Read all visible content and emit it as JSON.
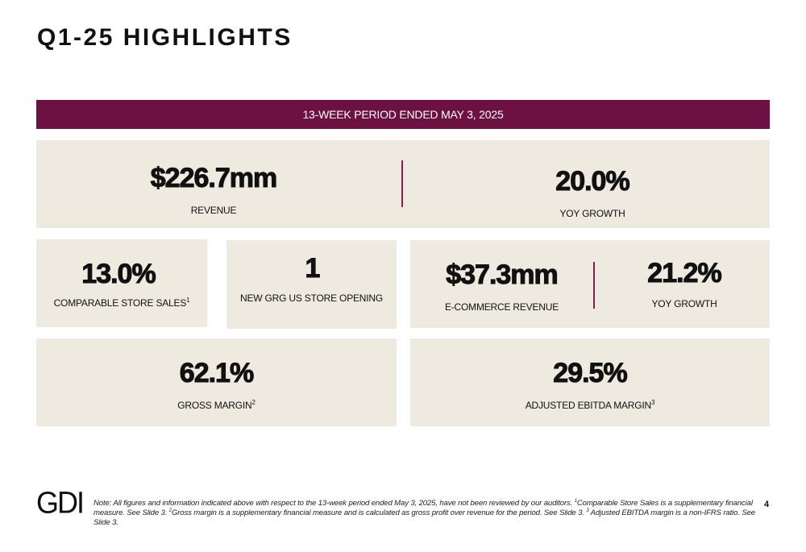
{
  "title": "Q1-25 HIGHLIGHTS",
  "banner": "13-WEEK PERIOD ENDED MAY 3, 2025",
  "revenue": {
    "value": "$226.7mm",
    "label": "REVENUE"
  },
  "revenue_growth": {
    "value": "20.0%",
    "label": "YOY GROWTH"
  },
  "comparable_store_sales": {
    "value": "13.0%",
    "label": "COMPARABLE STORE SALES",
    "footnote": "1"
  },
  "store_opening": {
    "value": "1",
    "label": "NEW GRG US STORE OPENING"
  },
  "ecommerce_revenue": {
    "value": "$37.3mm",
    "label": "E-COMMERCE REVENUE"
  },
  "ecommerce_growth": {
    "value": "21.2%",
    "label": "YOY GROWTH"
  },
  "gross_margin": {
    "value": "62.1%",
    "label": "GROSS MARGIN",
    "footnote": "2"
  },
  "ebitda_margin": {
    "value": "29.5%",
    "label": "ADJUSTED EBITDA MARGIN",
    "footnote": "3"
  },
  "footer": {
    "logo": "GDI",
    "note_part1": "Note: All figures and information indicated above with respect to the 13-week period ended May 3, 2025, have not been reviewed by our auditors. ",
    "note_fn1": "1",
    "note_part2": "Comparable Store Sales is a supplementary financial measure. See Slide 3. ",
    "note_fn2": "2",
    "note_part3": "Gross margin is a supplementary financial measure and is calculated as gross profit over revenue for the period. See Slide 3. ",
    "note_fn3": "3",
    "note_part4": " Adjusted EBITDA margin is a non-IFRS ratio. See Slide 3.",
    "page_number": "4"
  },
  "colors": {
    "accent": "#6d1142",
    "panel": "#efeae0",
    "divider": "#8a1c52"
  }
}
